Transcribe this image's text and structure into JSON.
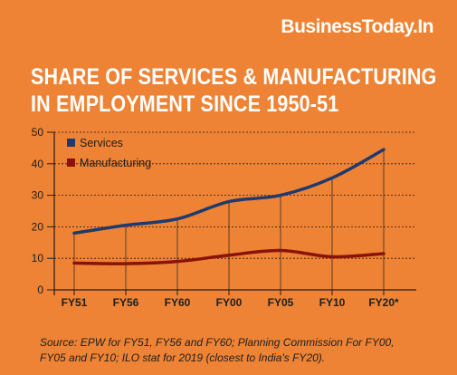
{
  "brand": "BusinessToday.In",
  "title_lines": [
    "SHARE OF SERVICES & MANUFACTURING",
    "IN EMPLOYMENT SINCE 1950-51"
  ],
  "source": "Source: EPW for FY51, FY56 and FY60; Planning Commission For FY00, FY05 and FY10; ILO stat for 2019 (closest to India's FY20).",
  "colors": {
    "background": "#ee8335",
    "services": "#1f3a6e",
    "manufacturing": "#8a1208",
    "text": "#1e1e1e"
  },
  "chart_data": {
    "type": "line",
    "categories": [
      "FY51",
      "FY56",
      "FY60",
      "FY00",
      "FY05",
      "FY10",
      "FY20*"
    ],
    "series": [
      {
        "name": "Services",
        "values": [
          18,
          20.5,
          22.5,
          28,
          30,
          35.5,
          44.5
        ]
      },
      {
        "name": "Manufacturing",
        "values": [
          8.5,
          8.3,
          9,
          11,
          12.5,
          10.5,
          11.5
        ]
      }
    ],
    "ylim": [
      0,
      50
    ],
    "yticks": [
      0,
      10,
      20,
      30,
      40,
      50
    ],
    "grid": true,
    "legend": "top-left"
  }
}
